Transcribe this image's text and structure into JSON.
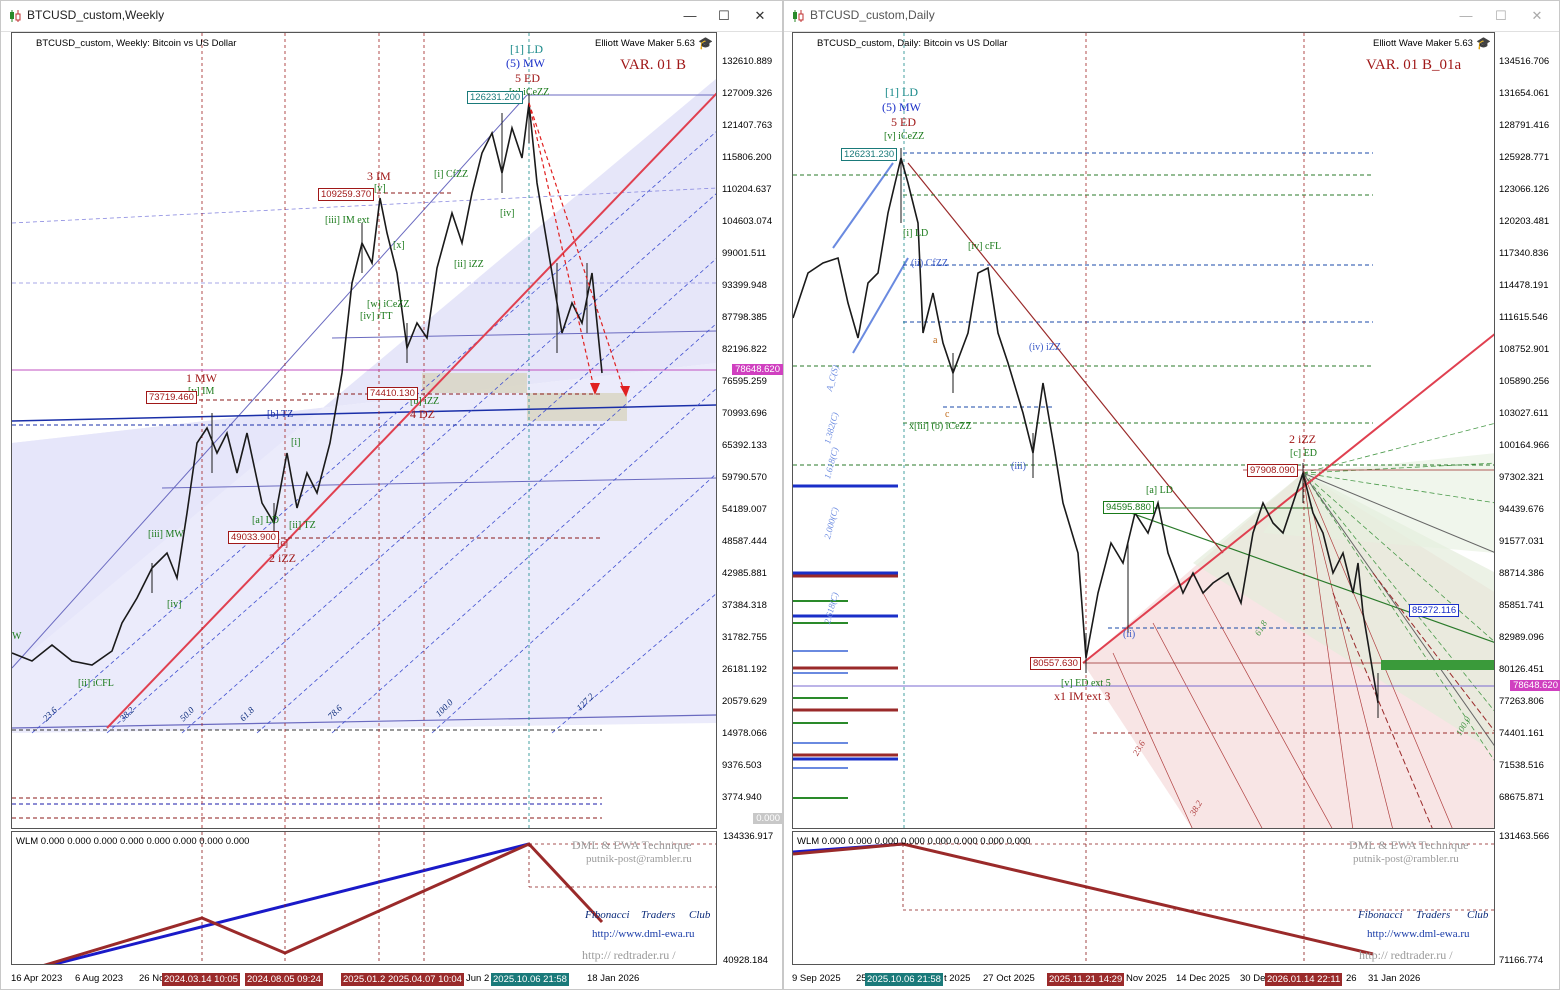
{
  "left": {
    "window_title": "BTCUSD_custom,Weekly",
    "header": "BTCUSD_custom, Weekly:  Bitcoin vs US Dollar",
    "app_name": "Elliott Wave Maker 5.63",
    "variant": "VAR. 01 B",
    "y_ticks": [
      "132610.889",
      "127009.326",
      "121407.763",
      "115806.200",
      "110204.637",
      "104603.074",
      "99001.511",
      "93399.948",
      "87798.385",
      "82196.822",
      "76595.259",
      "70993.696",
      "65392.133",
      "59790.570",
      "54189.007",
      "48587.444",
      "42985.881",
      "37384.318",
      "31782.755",
      "26181.192",
      "20579.629",
      "14978.066",
      "9376.503",
      "3774.940"
    ],
    "zero_tag": "0.000",
    "price_tag": "78648.620",
    "x_labels": [
      "16 Apr 2023",
      "6 Aug 2023",
      "26 No",
      "Jun 2",
      "18 Jan 2026"
    ],
    "x_highlights": [
      "2024.03.14 10:05",
      "2024.08.05 09:24",
      "2025.01.2",
      "2025.04.07 10:04",
      "2025.10.06 21:58"
    ],
    "wave_labels": {
      "ld": "[1] LD",
      "mw": "(5) MW",
      "ed": "5 ED",
      "im3": "3 IM",
      "mw1": "1 MW",
      "dz4": "4 DZ",
      "izz2": "2 iZZ",
      "icezz_v": "[v] iCeZZ",
      "v": "[v]",
      "iii_im": "[iii] IM ext",
      "i_cfzz": "[i] CfZZ",
      "iv": "[iv]",
      "ii_izz": "[ii] iZZ",
      "x": "[x]",
      "w_icezz": "[w] iCeZZ",
      "iv_rtt": "[iv] rTT",
      "v_im": "[v] IM",
      "b_tz": "[b] TZ",
      "a_ld": "[a] LD",
      "ii_tz": "[ii] TZ",
      "iii_mw": "[iii] MW",
      "iv2": "[iv]",
      "ii_icfl": "[ii] iCFL",
      "b_izz": "[b] iZZ",
      "c": "[c]",
      "i": "[i]",
      "w": "W"
    },
    "box_labels": [
      "126231.200",
      "109259.370",
      "73719.460",
      "74410.130",
      "49033.900"
    ],
    "fib_labels": [
      "23.6",
      "38.2",
      "50.0",
      "61.8",
      "78.6",
      "100.0",
      "127.2"
    ],
    "indicator": {
      "label": "WLM 0.000 0.000 0.000 0.000 0.000 0.000 0.000 0.000",
      "y_top": "134336.917",
      "y_bottom": "40928.184"
    },
    "credits": {
      "technique": "DML & EWA Technique",
      "email": "putnik-post@rambler.ru",
      "club": [
        "Fibonacci",
        "Traders",
        "Club"
      ],
      "url1": "http://www.dml-ewa.ru",
      "url2": "http:// redtrader.ru /"
    }
  },
  "right": {
    "window_title": "BTCUSD_custom,Daily",
    "header": "BTCUSD_custom, Daily:  Bitcoin vs US Dollar",
    "app_name": "Elliott Wave Maker 5.63",
    "variant": "VAR. 01 B_01a",
    "y_ticks": [
      "134516.706",
      "131654.061",
      "128791.416",
      "125928.771",
      "123066.126",
      "120203.481",
      "117340.836",
      "114478.191",
      "111615.546",
      "108752.901",
      "105890.256",
      "103027.611",
      "100164.966",
      "97302.321",
      "94439.676",
      "91577.031",
      "88714.386",
      "85851.741",
      "82989.096",
      "80126.451",
      "77263.806",
      "74401.161",
      "71538.516",
      "68675.871"
    ],
    "price_tag": "78648.620",
    "blue_tag": "85272.116",
    "x_labels": [
      "9 Sep 2025",
      "25",
      "t 2025",
      "27 Oct 2025",
      "Nov 2025",
      "14 Dec 2025",
      "30 De",
      "26",
      "31 Jan 2026"
    ],
    "x_highlights": [
      "2025.10.06 21:58",
      "2025.11.21 14:29",
      "2026.01.14 22:11"
    ],
    "wave_labels": {
      "ld": "[1] LD",
      "mw": "(5) MW",
      "ed": "5 ED",
      "v_icezz": "[v] iCeZZ",
      "i_ld": "[i] LD",
      "ii_cfzz": "(ii) CfZZ",
      "iv_cfl": "[iv] cFL",
      "iv_izz": "(iv) iZZ",
      "x_iii_icezz": "x[iii] (b) iCeZZ",
      "izz2": "2 iZZ",
      "c_ed": "[c] ED",
      "a_ld": "[a] LD",
      "v_ed": "[v] ED ext 5",
      "im_ext": "x1 IM ext 3",
      "a": "a",
      "b": "b",
      "c": "c",
      "iii": "(iii)",
      "ii": "(ii)"
    },
    "box_labels": [
      "126231.230",
      "97908.090",
      "94595.880",
      "80557.630"
    ],
    "fib_labels": [
      "23.6",
      "38.2",
      "61.8",
      "100.0",
      "1.382(C)",
      "1.618(C)",
      "2.000(C)",
      "2.618(C)",
      "A_C(S)",
      "1.C"
    ],
    "indicator": {
      "label": "WLM 0.000 0.000 0.000 0.000 0.000 0.000 0.000 0.000",
      "y_top": "131463.566",
      "y_bottom": "71166.774"
    },
    "credits": {
      "technique": "DML & EWA Technique",
      "email": "putnik-post@rambler.ru",
      "club": [
        "Fibonacci",
        "Traders",
        "Club"
      ],
      "url1": "http://www.dml-ewa.ru",
      "url2": "http:// redtrader.ru /"
    }
  }
}
